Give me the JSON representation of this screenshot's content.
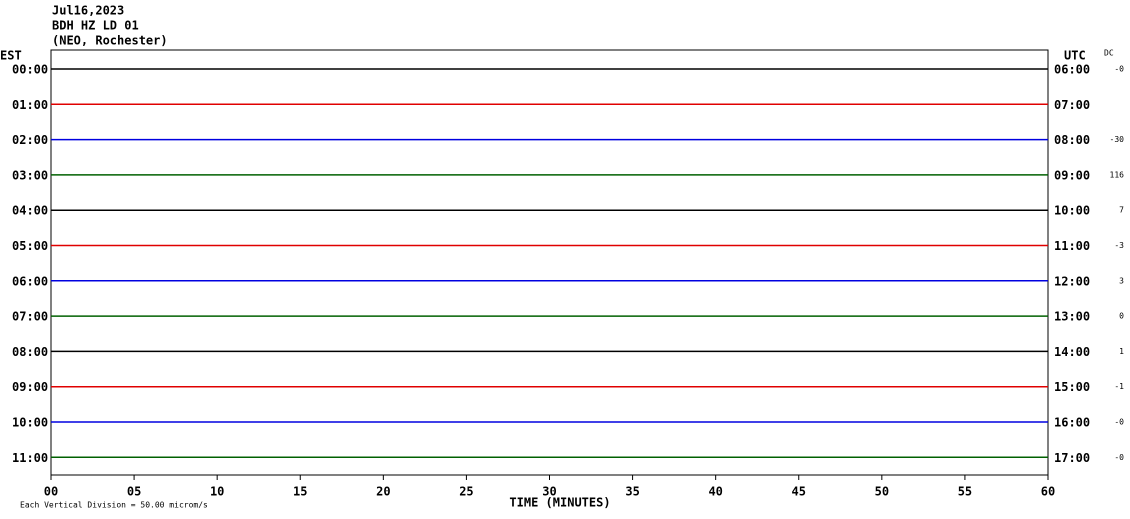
{
  "chart_data": {
    "type": "helicorder",
    "header": [
      "Jul16,2023",
      "BDH HZ LD 01",
      "(NEO, Rochester)"
    ],
    "left_label": "EST",
    "right_label": "UTC",
    "dc_label": "DC",
    "est": [
      "00:00",
      "01:00",
      "02:00",
      "03:00",
      "04:00",
      "05:00",
      "06:00",
      "07:00",
      "08:00",
      "09:00",
      "10:00",
      "11:00"
    ],
    "utc": [
      "06:00",
      "07:00",
      "08:00",
      "09:00",
      "10:00",
      "11:00",
      "12:00",
      "13:00",
      "14:00",
      "15:00",
      "16:00",
      "17:00"
    ],
    "dc": {
      "values": [
        0,
        null,
        -30,
        116,
        7,
        -3,
        3,
        0,
        1,
        -1,
        0,
        0
      ],
      "value_labels": [
        "-0",
        null,
        "-30",
        "116",
        "7",
        "-3",
        "3",
        "0",
        "1",
        "-1",
        "-0",
        "-0"
      ]
    },
    "colors": [
      "#000000",
      "#e00000",
      "#0000e0",
      "#006000"
    ],
    "xlabel": "TIME (MINUTES)",
    "footnote": "Each Vertical Division = 50.00 microm/s",
    "xlim": [
      0,
      60
    ],
    "xticks": [
      {
        "value": 0,
        "label": "00"
      },
      {
        "value": 5,
        "label": "05"
      },
      10,
      15,
      20,
      25,
      30,
      35,
      40,
      45,
      50,
      55,
      60
    ]
  }
}
